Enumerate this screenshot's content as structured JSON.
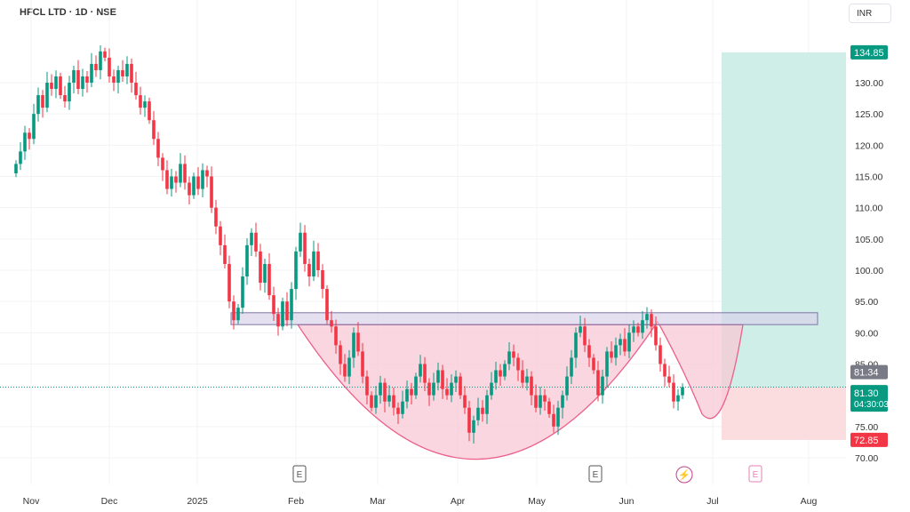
{
  "header": {
    "title": "HFCL LTD · 1D · NSE",
    "currency": "INR"
  },
  "colors": {
    "up": "#089981",
    "down": "#f23645",
    "target_zone": "#cfeee7",
    "stop_zone": "#fbdde0",
    "cup_fill": "#f8c8d6",
    "cup_stroke": "#ec5f8a",
    "resistance_fill": "#d9d3ea"
  },
  "chart_data": {
    "type": "candlestick",
    "title": "HFCL LTD · 1D · NSE",
    "ylim": [
      68,
      138
    ],
    "y_ticks": [
      "130.00",
      "125.00",
      "120.00",
      "115.00",
      "110.00",
      "105.00",
      "100.00",
      "95.00",
      "90.00",
      "85.00",
      "75.00",
      "70.00"
    ],
    "x_ticks": [
      "Nov",
      "Dec",
      "2025",
      "Feb",
      "Mar",
      "Apr",
      "May",
      "Jun",
      "Jul",
      "Aug"
    ],
    "closes": [
      117,
      119,
      122,
      121,
      125,
      128,
      126,
      130,
      129,
      131,
      128,
      127,
      130,
      132,
      129,
      131,
      130,
      133,
      132,
      135,
      134,
      131,
      130,
      132,
      131,
      133,
      130,
      128,
      126,
      127,
      124,
      121,
      118,
      116,
      113,
      115,
      114,
      117,
      114,
      112,
      115,
      113,
      116,
      115,
      110,
      107,
      104,
      101,
      95,
      92,
      94,
      99,
      104,
      106,
      103,
      98,
      101,
      96,
      93,
      91,
      95,
      92,
      97,
      103,
      106,
      101,
      99,
      103,
      100,
      97,
      92,
      91,
      88,
      85,
      83,
      86,
      90,
      87,
      83,
      80,
      78,
      80,
      82,
      79,
      80,
      78,
      77,
      79,
      81,
      80,
      83,
      85,
      82,
      80,
      82,
      84,
      81,
      80,
      82,
      83,
      80,
      78,
      74,
      76,
      78,
      77,
      80,
      82,
      84,
      83,
      85,
      87,
      86,
      84,
      82,
      83,
      80,
      78,
      80,
      79,
      77,
      75,
      78,
      80,
      83,
      86,
      90,
      91,
      88,
      86,
      84,
      80,
      83,
      87,
      86,
      88,
      89,
      87,
      90,
      91,
      90,
      92,
      93,
      91,
      88,
      85,
      83,
      82,
      79,
      80,
      81.3
    ],
    "resistance_zone": [
      91.3,
      93.2
    ],
    "target_price": "134.85",
    "last_close_label": "81.34",
    "current_price": "81.30",
    "countdown": "04:30:03",
    "stop_price": "72.85",
    "event_markers": [
      "E",
      "E",
      "E"
    ]
  }
}
